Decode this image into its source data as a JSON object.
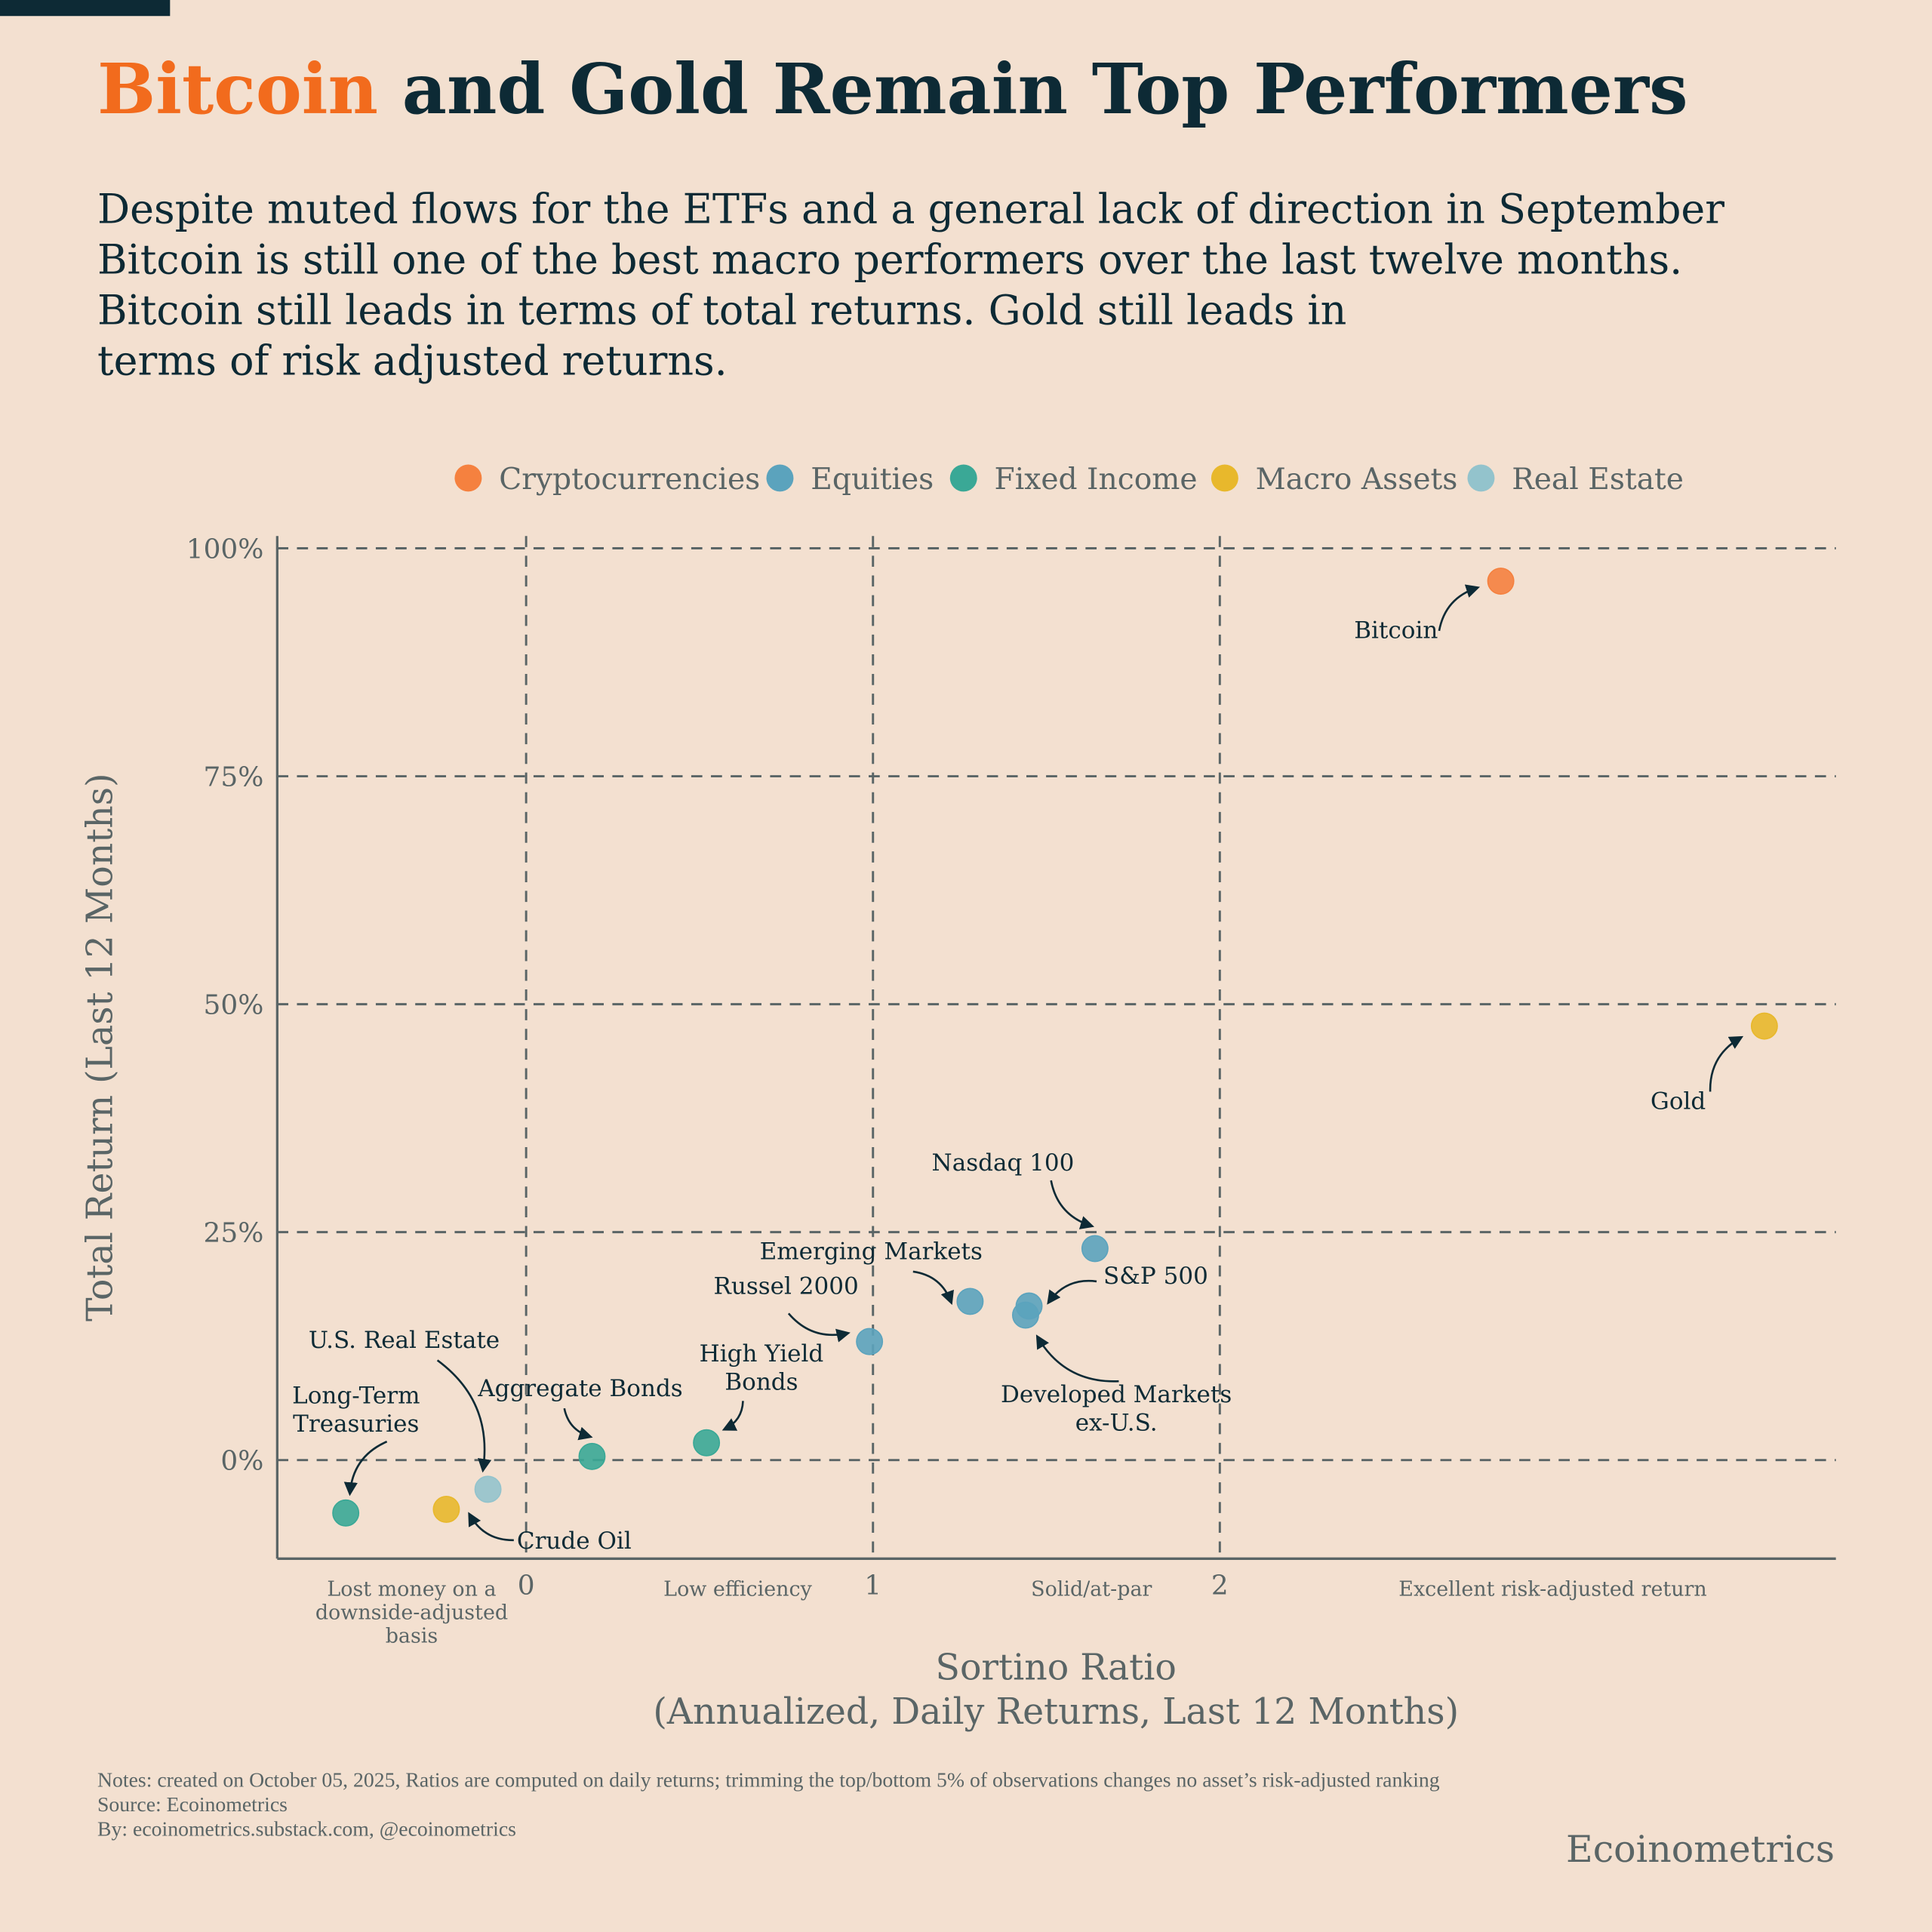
{
  "header": {
    "title_highlight": "Bitcoin",
    "title_rest": " and Gold Remain Top Performers",
    "subtitle_lines": [
      "Despite muted flows for the ETFs and a general lack of direction in September",
      "Bitcoin is still one of the best macro performers over the last twelve months.",
      "Bitcoin still leads in terms of total returns. Gold still leads in",
      "terms of risk adjusted returns."
    ]
  },
  "colors": {
    "background": "#f3e0d0",
    "title": "#0d2a35",
    "highlight": "#f26b1d",
    "Cryptocurrencies": "#f5813f",
    "Equities": "#5ba3bd",
    "Fixed Income": "#3aa896",
    "Macro Assets": "#e8b82c",
    "Real Estate": "#93c3cc"
  },
  "chart_data": {
    "type": "scatter",
    "xlabel_lines": [
      "Sortino Ratio",
      "(Annualized, Daily Returns, Last 12 Months)"
    ],
    "ylabel": "Total Return (Last 12 Months)",
    "xlim": [
      -0.72,
      3.78
    ],
    "ylim": [
      -10.8,
      101.5
    ],
    "x_ticks": [
      0,
      1,
      2
    ],
    "x_tick_labels": [
      "0",
      "1",
      "2"
    ],
    "y_ticks": [
      0,
      25,
      50,
      75,
      100
    ],
    "y_tick_labels": [
      "0%",
      "25%",
      "50%",
      "75%",
      "100%"
    ],
    "grid": true,
    "legend_placement": "top",
    "legend": [
      "Cryptocurrencies",
      "Equities",
      "Fixed Income",
      "Macro Assets",
      "Real Estate"
    ],
    "zones": [
      {
        "x": -0.33,
        "lines": [
          "Lost money on a",
          "downside-adjusted",
          "basis"
        ]
      },
      {
        "x": 0.61,
        "lines": [
          "Low efficiency"
        ]
      },
      {
        "x": 1.63,
        "lines": [
          "Solid/at-par"
        ]
      },
      {
        "x": 2.96,
        "lines": [
          "Excellent risk-adjusted return"
        ]
      }
    ],
    "points": [
      {
        "name": "Bitcoin",
        "category": "Cryptocurrencies",
        "x": 2.81,
        "y": 96.4,
        "label_lines": [
          "Bitcoin"
        ]
      },
      {
        "name": "Gold",
        "category": "Macro Assets",
        "x": 3.57,
        "y": 47.6,
        "label_lines": [
          "Gold"
        ]
      },
      {
        "name": "Nasdaq 100",
        "category": "Equities",
        "x": 1.64,
        "y": 23.2,
        "label_lines": [
          "Nasdaq 100"
        ]
      },
      {
        "name": "S&P 500",
        "category": "Equities",
        "x": 1.45,
        "y": 16.9,
        "label_lines": [
          "S&P 500"
        ]
      },
      {
        "name": "Developed Markets ex-U.S.",
        "category": "Equities",
        "x": 1.44,
        "y": 15.9,
        "label_lines": [
          "Developed Markets",
          "ex-U.S."
        ]
      },
      {
        "name": "Emerging Markets",
        "category": "Equities",
        "x": 1.28,
        "y": 17.4,
        "label_lines": [
          "Emerging Markets"
        ]
      },
      {
        "name": "Russel 2000",
        "category": "Equities",
        "x": 0.99,
        "y": 13.0,
        "label_lines": [
          "Russel 2000"
        ]
      },
      {
        "name": "High Yield Bonds",
        "category": "Fixed Income",
        "x": 0.52,
        "y": 1.9,
        "label_lines": [
          "High Yield",
          "Bonds"
        ]
      },
      {
        "name": "Aggregate Bonds",
        "category": "Fixed Income",
        "x": 0.19,
        "y": 0.4,
        "label_lines": [
          "Aggregate Bonds"
        ]
      },
      {
        "name": "U.S. Real Estate",
        "category": "Real Estate",
        "x": -0.11,
        "y": -3.2,
        "label_lines": [
          "U.S. Real Estate"
        ]
      },
      {
        "name": "Crude Oil",
        "category": "Macro Assets",
        "x": -0.23,
        "y": -5.4,
        "label_lines": [
          "Crude Oil"
        ]
      },
      {
        "name": "Long-Term Treasuries",
        "category": "Fixed Income",
        "x": -0.52,
        "y": -5.8,
        "label_lines": [
          "Long-Term",
          "Treasuries"
        ]
      }
    ]
  },
  "footer": {
    "notes": "Notes: created on October 05, 2025, Ratios are computed on daily returns; trimming the top/bottom 5% of observations changes no asset’s risk-adjusted ranking",
    "source": "Source: Ecoinometrics",
    "by": "By: ecoinometrics.substack.com, @ecoinometrics",
    "brand": "Ecoinometrics"
  }
}
